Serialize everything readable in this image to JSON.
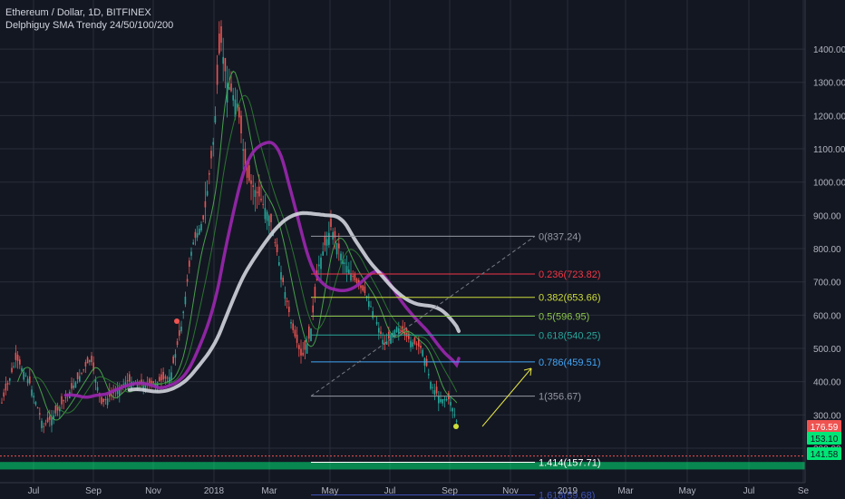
{
  "header": {
    "symbol_line": "Ethereum / Dollar, 1D, BITFINEX",
    "indicator_line": "Delphiguy SMA Trendy 24/50/100/200"
  },
  "colors": {
    "background": "#131722",
    "grid": "#2a2e39",
    "axis_text": "#b2b5be",
    "candle_up": "#26a69a",
    "candle_down": "#ef5350",
    "sma_green": "#4caf50",
    "sma_purple": "#9c27b0",
    "sma_white": "#d1d4dc",
    "support_zone": "#00e676",
    "price_tag_red": "#ef5350",
    "price_tag_green": "#00e676",
    "arrow": "#e5e544"
  },
  "chart_data": {
    "type": "candlestick",
    "title": "Ethereum / Dollar, 1D, BITFINEX",
    "ylim": [
      100,
      1450
    ],
    "y_ticks": [
      200,
      300,
      400,
      500,
      600,
      700,
      800,
      900,
      1000,
      1100,
      1200,
      1300,
      1400
    ],
    "y_tick_labels": [
      "200.00",
      "300.00",
      "400.00",
      "500.00",
      "600.00",
      "700.00",
      "800.00",
      "900.00",
      "1000.00",
      "1100.00",
      "1200.00",
      "1300.00",
      "1400.00"
    ],
    "x_ticks": [
      "Jul",
      "Sep",
      "Nov",
      "2018",
      "Mar",
      "May",
      "Jul",
      "Sep",
      "Nov",
      "2019",
      "Mar",
      "May",
      "Jul",
      "Se"
    ],
    "price_series": {
      "name": "ETHUSD",
      "dates": [
        "2017-06",
        "2017-07",
        "2017-08",
        "2017-09",
        "2017-10",
        "2017-11",
        "2017-12",
        "2018-01-05",
        "2018-01-13",
        "2018-02-01",
        "2018-02-15",
        "2018-03-01",
        "2018-03-15",
        "2018-04-05",
        "2018-04-20",
        "2018-05-05",
        "2018-05-20",
        "2018-06-10",
        "2018-06-28",
        "2018-07-25",
        "2018-08-15",
        "2018-09-01",
        "2018-09-12"
      ],
      "close": [
        330,
        230,
        300,
        290,
        300,
        420,
        720,
        1100,
        1300,
        1000,
        870,
        850,
        620,
        400,
        600,
        800,
        680,
        530,
        450,
        470,
        300,
        280,
        190
      ]
    },
    "sma_series": [
      {
        "name": "SMA 24",
        "color": "green"
      },
      {
        "name": "SMA 50",
        "color": "green"
      },
      {
        "name": "SMA 100",
        "color": "purple"
      },
      {
        "name": "SMA 200",
        "color": "white"
      }
    ],
    "fibonacci": [
      {
        "label": "0(837.24)",
        "level": 837.24,
        "color": "#9598a1"
      },
      {
        "label": "0.236(723.82)",
        "level": 723.82,
        "color": "#f23645"
      },
      {
        "label": "0.382(653.66)",
        "level": 653.66,
        "color": "#cddc39"
      },
      {
        "label": "0.5(596.95)",
        "level": 596.95,
        "color": "#8bc34a"
      },
      {
        "label": "0.618(540.25)",
        "level": 540.25,
        "color": "#26a69a"
      },
      {
        "label": "0.786(459.51)",
        "level": 459.51,
        "color": "#42a5f5"
      },
      {
        "label": "1(356.67)",
        "level": 356.67,
        "color": "#9598a1"
      },
      {
        "label": "1.414(157.71)",
        "level": 157.71,
        "color": "#ffffff"
      },
      {
        "label": "1.618(59.68)",
        "level": 59.68,
        "color": "#3f51b5"
      }
    ],
    "price_tags": [
      {
        "label": "176.59",
        "value": 176.59,
        "color": "#ef5350"
      },
      {
        "label": "153.10",
        "value": 153.1,
        "color": "#00e676"
      },
      {
        "label": "141.58",
        "value": 141.58,
        "color": "#00e676"
      }
    ],
    "support_zone": [
      141.58,
      153.1
    ]
  }
}
